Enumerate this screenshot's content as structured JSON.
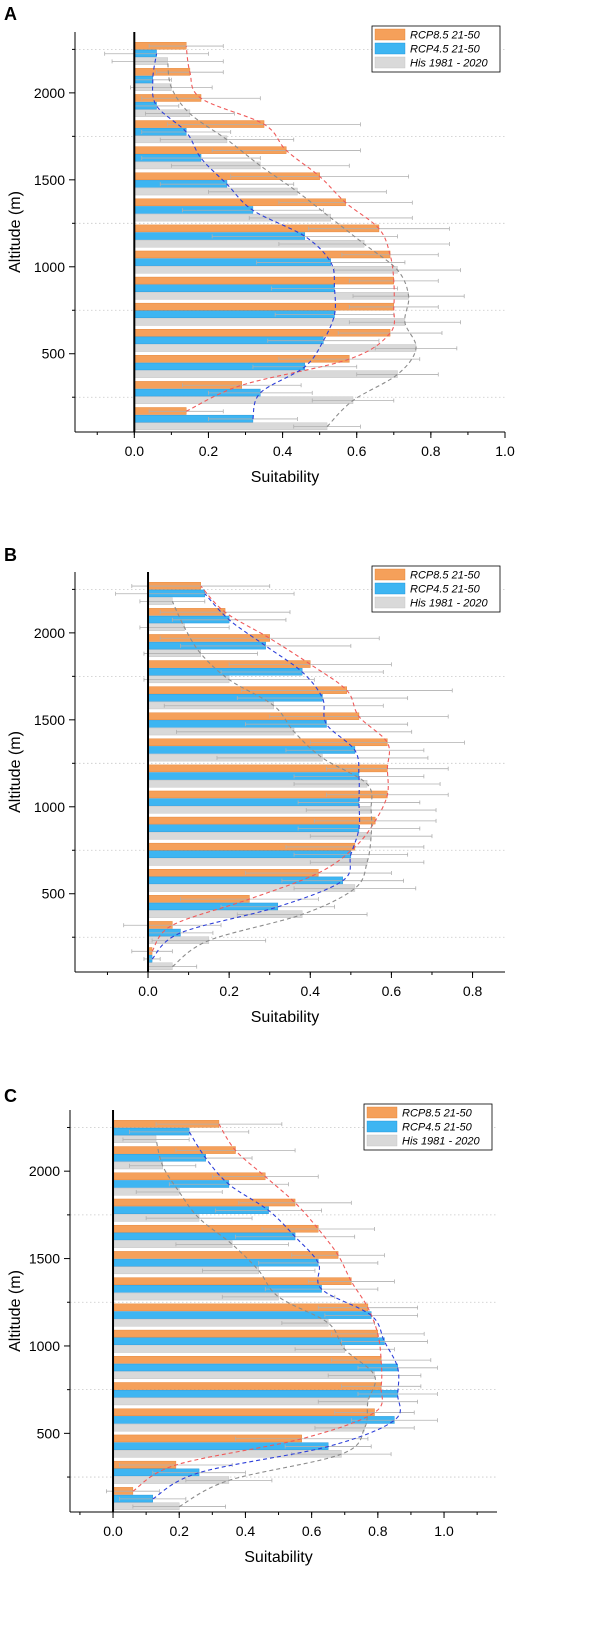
{
  "figure": {
    "panels": [
      "A",
      "B",
      "C"
    ],
    "colors": {
      "rcp85": "#F5A05A",
      "rcp85_edge": "#E07E2E",
      "rcp45": "#3DB5F2",
      "rcp45_edge": "#1E8FD4",
      "his": "#D9D9D9",
      "his_edge": "#BDBDBD",
      "rcp85_fit": "#F05A5A",
      "rcp45_fit": "#2D3FD9",
      "his_fit": "#8C8C8C",
      "error_bar": "#B0B0B0",
      "grid": "#C8C8C8"
    }
  },
  "chart_data": [
    {
      "type": "bar",
      "orientation": "horizontal",
      "panel": "A",
      "xlabel": "Suitability",
      "ylabel": "Altitude (m)",
      "xlim": [
        -0.16,
        1.0
      ],
      "ylim": [
        50,
        2350
      ],
      "x_ticks": [
        0.0,
        0.2,
        0.4,
        0.6,
        0.8,
        1.0
      ],
      "x_tick_labels": [
        "0.0",
        "0.2",
        "0.4",
        "0.6",
        "0.8",
        "1.0"
      ],
      "y_ticks": [
        500,
        1000,
        1500,
        2000
      ],
      "y_tick_labels": [
        "500",
        "1000",
        "1500",
        "2000"
      ],
      "bands": [
        125,
        275,
        425,
        575,
        725,
        875,
        1025,
        1175,
        1325,
        1475,
        1625,
        1775,
        1925,
        2075,
        2225
      ],
      "grid_lines_y": [
        250,
        750,
        1250,
        1750,
        2250
      ],
      "grid": "dotted horizontal",
      "legend_position": "top-right",
      "series": [
        {
          "name": "RCP8.5 21-50",
          "values": [
            0.14,
            0.29,
            0.58,
            0.69,
            0.7,
            0.7,
            0.69,
            0.66,
            0.57,
            0.5,
            0.41,
            0.35,
            0.18,
            0.15,
            0.14
          ],
          "errors": [
            0.1,
            0.16,
            0.19,
            0.14,
            0.12,
            0.12,
            0.13,
            0.19,
            0.18,
            0.24,
            0.2,
            0.26,
            0.16,
            0.09,
            0.1
          ]
        },
        {
          "name": "RCP4.5 21-50",
          "values": [
            0.32,
            0.34,
            0.46,
            0.51,
            0.54,
            0.54,
            0.53,
            0.46,
            0.32,
            0.25,
            0.18,
            0.14,
            0.06,
            0.05,
            0.06
          ],
          "errors": [
            0.12,
            0.14,
            0.14,
            0.15,
            0.16,
            0.17,
            0.2,
            0.25,
            0.19,
            0.18,
            0.16,
            0.12,
            0.06,
            0.05,
            0.14
          ]
        },
        {
          "name": "His 1981 - 2020",
          "values": [
            0.52,
            0.59,
            0.71,
            0.76,
            0.73,
            0.74,
            0.71,
            0.62,
            0.53,
            0.44,
            0.34,
            0.25,
            0.15,
            0.1,
            0.09
          ],
          "errors": [
            0.09,
            0.11,
            0.11,
            0.11,
            0.15,
            0.15,
            0.17,
            0.23,
            0.22,
            0.24,
            0.24,
            0.18,
            0.12,
            0.11,
            0.15
          ]
        }
      ]
    },
    {
      "type": "bar",
      "orientation": "horizontal",
      "panel": "B",
      "xlabel": "Suitability",
      "ylabel": "Altitude (m)",
      "xlim": [
        -0.18,
        0.88
      ],
      "ylim": [
        50,
        2350
      ],
      "x_ticks": [
        0.0,
        0.2,
        0.4,
        0.6,
        0.8
      ],
      "x_tick_labels": [
        "0.0",
        "0.2",
        "0.4",
        "0.6",
        "0.8"
      ],
      "y_ticks": [
        500,
        1000,
        1500,
        2000
      ],
      "y_tick_labels": [
        "500",
        "1000",
        "1500",
        "2000"
      ],
      "bands": [
        125,
        275,
        425,
        575,
        725,
        875,
        1025,
        1175,
        1325,
        1475,
        1625,
        1775,
        1925,
        2075,
        2225
      ],
      "grid_lines_y": [
        250,
        750,
        1250,
        1750,
        2250
      ],
      "grid": "dotted horizontal",
      "legend_position": "top-right",
      "series": [
        {
          "name": "RCP8.5 21-50",
          "values": [
            0.01,
            0.06,
            0.25,
            0.42,
            0.51,
            0.56,
            0.59,
            0.59,
            0.59,
            0.52,
            0.49,
            0.4,
            0.3,
            0.19,
            0.13
          ],
          "errors": [
            0.05,
            0.12,
            0.17,
            0.18,
            0.17,
            0.15,
            0.15,
            0.15,
            0.19,
            0.22,
            0.26,
            0.2,
            0.27,
            0.16,
            0.17
          ]
        },
        {
          "name": "RCP4.5 21-50",
          "values": [
            0.01,
            0.08,
            0.32,
            0.48,
            0.5,
            0.52,
            0.52,
            0.52,
            0.51,
            0.44,
            0.43,
            0.38,
            0.29,
            0.2,
            0.14
          ],
          "errors": [
            0.02,
            0.08,
            0.14,
            0.15,
            0.14,
            0.15,
            0.15,
            0.16,
            0.17,
            0.2,
            0.21,
            0.2,
            0.21,
            0.14,
            0.22
          ]
        },
        {
          "name": "His 1981 - 2020",
          "values": [
            0.06,
            0.15,
            0.38,
            0.51,
            0.54,
            0.55,
            0.55,
            0.54,
            0.43,
            0.36,
            0.31,
            0.2,
            0.13,
            0.09,
            0.06
          ],
          "errors": [
            0.06,
            0.14,
            0.16,
            0.15,
            0.14,
            0.15,
            0.16,
            0.18,
            0.26,
            0.29,
            0.27,
            0.21,
            0.14,
            0.11,
            0.08
          ]
        }
      ]
    },
    {
      "type": "bar",
      "orientation": "horizontal",
      "panel": "C",
      "xlabel": "Suitability",
      "ylabel": "Altitude (m)",
      "xlim": [
        -0.13,
        1.16
      ],
      "ylim": [
        50,
        2350
      ],
      "x_ticks": [
        0.0,
        0.2,
        0.4,
        0.6,
        0.8,
        1.0
      ],
      "x_tick_labels": [
        "0.0",
        "0.2",
        "0.4",
        "0.6",
        "0.8",
        "1.0"
      ],
      "y_ticks": [
        500,
        1000,
        1500,
        2000
      ],
      "y_tick_labels": [
        "500",
        "1000",
        "1500",
        "2000"
      ],
      "bands": [
        125,
        275,
        425,
        575,
        725,
        875,
        1025,
        1175,
        1325,
        1475,
        1625,
        1775,
        1925,
        2075,
        2225
      ],
      "grid_lines_y": [
        250,
        750,
        1250,
        1750,
        2250
      ],
      "grid": "dotted horizontal",
      "legend_position": "top-right",
      "series": [
        {
          "name": "RCP8.5 21-50",
          "values": [
            0.06,
            0.19,
            0.57,
            0.79,
            0.81,
            0.81,
            0.8,
            0.77,
            0.72,
            0.68,
            0.62,
            0.55,
            0.46,
            0.37,
            0.32
          ],
          "errors": [
            0.08,
            0.17,
            0.2,
            0.12,
            0.12,
            0.15,
            0.14,
            0.15,
            0.13,
            0.14,
            0.17,
            0.17,
            0.16,
            0.18,
            0.19
          ]
        },
        {
          "name": "RCP4.5 21-50",
          "values": [
            0.12,
            0.26,
            0.65,
            0.85,
            0.86,
            0.86,
            0.82,
            0.78,
            0.63,
            0.62,
            0.55,
            0.47,
            0.35,
            0.28,
            0.23
          ],
          "errors": [
            0.1,
            0.14,
            0.13,
            0.13,
            0.12,
            0.12,
            0.13,
            0.14,
            0.17,
            0.18,
            0.18,
            0.16,
            0.18,
            0.14,
            0.18
          ]
        },
        {
          "name": "His 1981 - 2020",
          "values": [
            0.2,
            0.35,
            0.69,
            0.76,
            0.77,
            0.79,
            0.7,
            0.65,
            0.5,
            0.44,
            0.36,
            0.26,
            0.2,
            0.15,
            0.13
          ],
          "errors": [
            0.14,
            0.13,
            0.15,
            0.15,
            0.15,
            0.14,
            0.15,
            0.14,
            0.17,
            0.17,
            0.17,
            0.16,
            0.13,
            0.1,
            0.1
          ]
        }
      ]
    }
  ]
}
